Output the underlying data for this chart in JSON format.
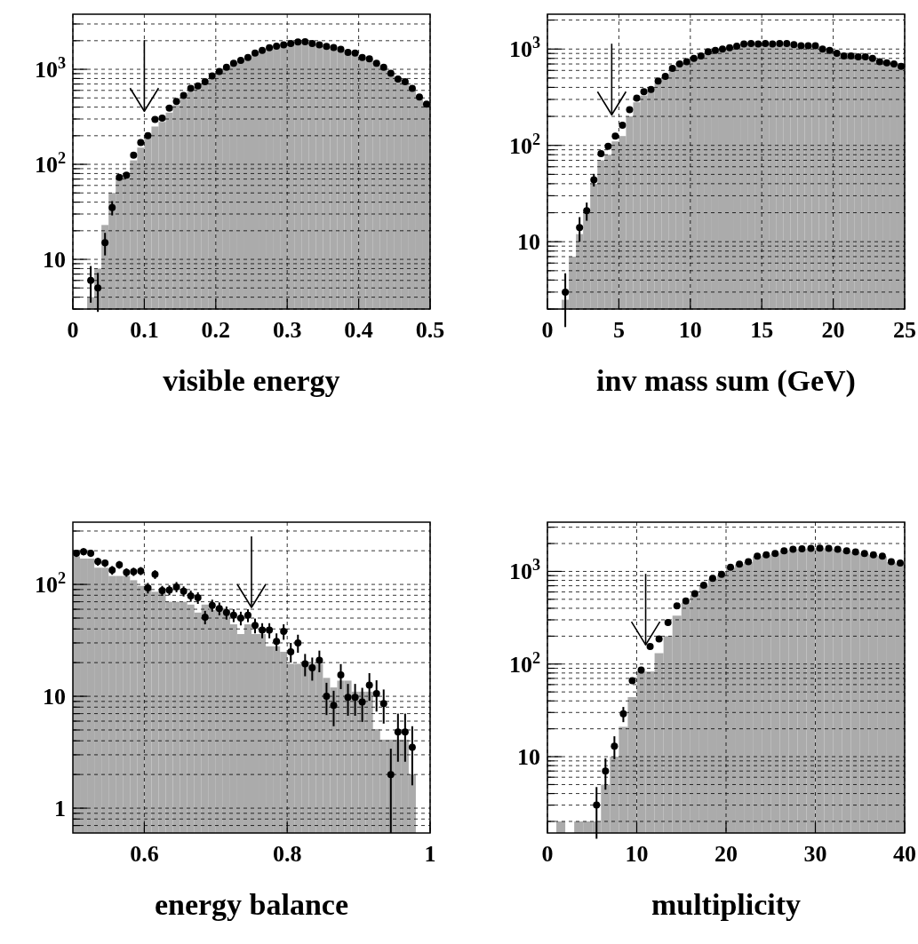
{
  "chart_data": [
    {
      "type": "histogram",
      "xlabel": "visible energy",
      "log": true,
      "grid": true,
      "marker": "circle",
      "xlim": [
        0,
        0.5
      ],
      "ylim": [
        3,
        3800
      ],
      "xticks": [
        0,
        0.1,
        0.2,
        0.3,
        0.4,
        0.5
      ],
      "yticks": [
        {
          "value": 3,
          "label": null
        },
        {
          "value": 4,
          "label": null
        },
        {
          "value": 5,
          "label": null
        },
        {
          "value": 6,
          "label": null
        },
        {
          "value": 7,
          "label": null
        },
        {
          "value": 8,
          "label": null
        },
        {
          "value": 9,
          "label": null
        },
        {
          "value": 10,
          "label": "10"
        },
        {
          "value": 20,
          "label": null
        },
        {
          "value": 30,
          "label": null
        },
        {
          "value": 40,
          "label": null
        },
        {
          "value": 50,
          "label": null
        },
        {
          "value": 60,
          "label": null
        },
        {
          "value": 70,
          "label": null
        },
        {
          "value": 80,
          "label": null
        },
        {
          "value": 90,
          "label": null
        },
        {
          "value": 100,
          "label": "10$^{2}$"
        },
        {
          "value": 200,
          "label": null
        },
        {
          "value": 300,
          "label": null
        },
        {
          "value": 400,
          "label": null
        },
        {
          "value": 500,
          "label": null
        },
        {
          "value": 600,
          "label": null
        },
        {
          "value": 700,
          "label": null
        },
        {
          "value": 800,
          "label": null
        },
        {
          "value": 900,
          "label": null
        },
        {
          "value": 1000,
          "label": "10$^{3}$"
        },
        {
          "value": 2000,
          "label": null
        },
        {
          "value": 3000,
          "label": null
        }
      ],
      "bins": [
        0.02,
        0.03,
        0.04,
        0.05,
        0.06,
        0.07,
        0.08,
        0.09,
        0.1,
        0.11,
        0.12,
        0.13,
        0.14,
        0.15,
        0.16,
        0.17,
        0.18,
        0.19,
        0.2,
        0.21,
        0.22,
        0.23,
        0.24,
        0.25,
        0.26,
        0.27,
        0.28,
        0.29,
        0.3,
        0.31,
        0.32,
        0.33,
        0.34,
        0.35,
        0.36,
        0.37,
        0.38,
        0.39,
        0.4,
        0.41,
        0.42,
        0.43,
        0.44,
        0.45,
        0.46,
        0.47,
        0.48,
        0.49,
        0.5
      ],
      "ref_lines": [
        {
          "axis": "x",
          "value": 0.1
        }
      ],
      "series": [
        {
          "color": "#ababab",
          "values": [
            4,
            8,
            23,
            50,
            70,
            80,
            110,
            150,
            190,
            250,
            280,
            350,
            420,
            490,
            580,
            650,
            720,
            820,
            930,
            1030,
            1130,
            1230,
            1320,
            1460,
            1570,
            1680,
            1740,
            1800,
            1860,
            1920,
            1930,
            1880,
            1820,
            1750,
            1700,
            1620,
            1520,
            1480,
            1340,
            1290,
            1160,
            1050,
            920,
            800,
            740,
            630,
            520,
            440
          ]
        },
        {
          "type": "scatter",
          "color": "#000000",
          "x": [
            0.025,
            0.035,
            0.045,
            0.055,
            0.065,
            0.075,
            0.085,
            0.095,
            0.105,
            0.115,
            0.125,
            0.135,
            0.145,
            0.155,
            0.165,
            0.175,
            0.185,
            0.195,
            0.205,
            0.215,
            0.225,
            0.235,
            0.245,
            0.255,
            0.265,
            0.275,
            0.285,
            0.295,
            0.305,
            0.315,
            0.325,
            0.335,
            0.345,
            0.355,
            0.365,
            0.375,
            0.385,
            0.395,
            0.405,
            0.415,
            0.425,
            0.435,
            0.445,
            0.455,
            0.465,
            0.475,
            0.485,
            0.495
          ],
          "values": [
            6,
            5,
            15,
            35,
            73,
            77,
            125,
            170,
            200,
            296,
            306,
            390,
            460,
            530,
            630,
            670,
            740,
            850,
            950,
            1050,
            1160,
            1240,
            1330,
            1480,
            1580,
            1690,
            1750,
            1810,
            1870,
            1940,
            1950,
            1870,
            1810,
            1740,
            1700,
            1620,
            1510,
            1480,
            1330,
            1290,
            1160,
            1050,
            910,
            790,
            740,
            630,
            510,
            430
          ],
          "errors": [
            2.5,
            2.2,
            4,
            6,
            null,
            null,
            null,
            null,
            null,
            null,
            null,
            null,
            null,
            null,
            null,
            null,
            null,
            null,
            null,
            null,
            null,
            null,
            null,
            null,
            null,
            null,
            null,
            null,
            null,
            null,
            null,
            null,
            null,
            null,
            null,
            null,
            null,
            null,
            null,
            null,
            null,
            null,
            null,
            null,
            null,
            null,
            null,
            null
          ]
        }
      ]
    },
    {
      "type": "histogram",
      "xlabel": "inv mass sum (GeV)",
      "log": true,
      "grid": true,
      "marker": "circle",
      "xlim": [
        0,
        25
      ],
      "ylim": [
        2,
        2300
      ],
      "xticks": [
        0,
        5,
        10,
        15,
        20,
        25
      ],
      "yticks": [
        {
          "value": 2,
          "label": null
        },
        {
          "value": 3,
          "label": null
        },
        {
          "value": 4,
          "label": null
        },
        {
          "value": 5,
          "label": null
        },
        {
          "value": 6,
          "label": null
        },
        {
          "value": 7,
          "label": null
        },
        {
          "value": 8,
          "label": null
        },
        {
          "value": 9,
          "label": null
        },
        {
          "value": 10,
          "label": "10"
        },
        {
          "value": 20,
          "label": null
        },
        {
          "value": 30,
          "label": null
        },
        {
          "value": 40,
          "label": null
        },
        {
          "value": 50,
          "label": null
        },
        {
          "value": 60,
          "label": null
        },
        {
          "value": 70,
          "label": null
        },
        {
          "value": 80,
          "label": null
        },
        {
          "value": 90,
          "label": null
        },
        {
          "value": 100,
          "label": "10$^{2}$"
        },
        {
          "value": 200,
          "label": null
        },
        {
          "value": 300,
          "label": null
        },
        {
          "value": 400,
          "label": null
        },
        {
          "value": 500,
          "label": null
        },
        {
          "value": 600,
          "label": null
        },
        {
          "value": 700,
          "label": null
        },
        {
          "value": 800,
          "label": null
        },
        {
          "value": 900,
          "label": null
        },
        {
          "value": 1000,
          "label": "10$^{3}$"
        },
        {
          "value": 2000,
          "label": null
        }
      ],
      "bins": [
        1,
        1.5,
        2,
        2.5,
        3,
        3.5,
        4,
        4.5,
        5,
        5.5,
        6,
        6.5,
        7,
        7.5,
        8,
        8.5,
        9,
        9.5,
        10,
        10.5,
        11,
        11.5,
        12,
        12.5,
        13,
        13.5,
        14,
        14.5,
        15,
        15.5,
        16,
        16.5,
        17,
        17.5,
        18,
        18.5,
        19,
        19.5,
        20,
        20.5,
        21,
        21.5,
        22,
        22.5,
        23,
        23.5,
        24,
        24.5,
        25
      ],
      "ref_lines": [
        {
          "axis": "x",
          "value": 4.5
        }
      ],
      "series": [
        {
          "color": "#ababab",
          "values": [
            2.5,
            7,
            12,
            20,
            40,
            70,
            80,
            110,
            125,
            200,
            280,
            330,
            370,
            450,
            510,
            620,
            690,
            730,
            790,
            840,
            930,
            960,
            990,
            1020,
            1060,
            1120,
            1130,
            1120,
            1130,
            1120,
            1130,
            1130,
            1100,
            1070,
            1070,
            1070,
            990,
            960,
            900,
            845,
            845,
            825,
            825,
            795,
            735,
            715,
            695,
            655
          ]
        },
        {
          "type": "scatter",
          "color": "#000000",
          "x": [
            1.25,
            1.75,
            2.25,
            2.75,
            3.25,
            3.75,
            4.25,
            4.75,
            5.25,
            5.75,
            6.25,
            6.75,
            7.25,
            7.75,
            8.25,
            8.75,
            9.25,
            9.75,
            10.25,
            10.75,
            11.25,
            11.75,
            12.25,
            12.75,
            13.25,
            13.75,
            14.25,
            14.75,
            15.25,
            15.75,
            16.25,
            16.75,
            17.25,
            17.75,
            18.25,
            18.75,
            19.25,
            19.75,
            20.25,
            20.75,
            21.25,
            21.75,
            22.25,
            22.75,
            23.25,
            23.75,
            24.25,
            24.75
          ],
          "values": [
            3,
            null,
            14,
            21,
            44,
            82,
            98,
            125,
            162,
            235,
            310,
            360,
            380,
            465,
            520,
            630,
            700,
            740,
            800,
            850,
            940,
            970,
            1000,
            1030,
            1070,
            1130,
            1140,
            1130,
            1140,
            1130,
            1140,
            1140,
            1110,
            1080,
            1080,
            1080,
            1000,
            970,
            905,
            850,
            850,
            830,
            830,
            800,
            740,
            720,
            700,
            660
          ],
          "errors": [
            1.7,
            null,
            4,
            4.5,
            6.6,
            null,
            null,
            null,
            null,
            null,
            null,
            null,
            null,
            null,
            null,
            null,
            null,
            null,
            null,
            null,
            null,
            null,
            null,
            null,
            null,
            null,
            null,
            null,
            null,
            null,
            null,
            null,
            null,
            null,
            null,
            null,
            null,
            null,
            null,
            null,
            null,
            null,
            null,
            null,
            null,
            null,
            null,
            null
          ]
        }
      ]
    },
    {
      "type": "histogram",
      "xlabel": "energy balance",
      "log": true,
      "grid": true,
      "marker": "circle",
      "xlim": [
        0.5,
        1
      ],
      "ylim": [
        0.6,
        360
      ],
      "xticks": [
        0.6,
        0.8,
        1
      ],
      "yticks": [
        {
          "value": 0.7,
          "label": null
        },
        {
          "value": 0.8,
          "label": null
        },
        {
          "value": 0.9,
          "label": null
        },
        {
          "value": 1,
          "label": "1"
        },
        {
          "value": 2,
          "label": null
        },
        {
          "value": 3,
          "label": null
        },
        {
          "value": 4,
          "label": null
        },
        {
          "value": 5,
          "label": null
        },
        {
          "value": 6,
          "label": null
        },
        {
          "value": 7,
          "label": null
        },
        {
          "value": 8,
          "label": null
        },
        {
          "value": 9,
          "label": null
        },
        {
          "value": 10,
          "label": "10"
        },
        {
          "value": 20,
          "label": null
        },
        {
          "value": 30,
          "label": null
        },
        {
          "value": 40,
          "label": null
        },
        {
          "value": 50,
          "label": null
        },
        {
          "value": 60,
          "label": null
        },
        {
          "value": 70,
          "label": null
        },
        {
          "value": 80,
          "label": null
        },
        {
          "value": 90,
          "label": null
        },
        {
          "value": 100,
          "label": "10$^{2}$"
        },
        {
          "value": 200,
          "label": null
        },
        {
          "value": 300,
          "label": null
        }
      ],
      "bins": [
        0.5,
        0.51,
        0.52,
        0.53,
        0.54,
        0.55,
        0.56,
        0.57,
        0.58,
        0.59,
        0.6,
        0.61,
        0.62,
        0.63,
        0.64,
        0.65,
        0.66,
        0.67,
        0.68,
        0.69,
        0.7,
        0.71,
        0.72,
        0.73,
        0.74,
        0.75,
        0.76,
        0.77,
        0.78,
        0.79,
        0.8,
        0.81,
        0.82,
        0.83,
        0.84,
        0.85,
        0.86,
        0.87,
        0.88,
        0.89,
        0.9,
        0.91,
        0.92,
        0.93,
        0.94,
        0.95,
        0.96,
        0.97,
        0.98
      ],
      "ref_lines": [
        {
          "axis": "x",
          "value": 0.75
        }
      ],
      "series": [
        {
          "color": "#ababab",
          "values": [
            178,
            170,
            170,
            141,
            141,
            119,
            119,
            119,
            109,
            97,
            97,
            86,
            86,
            70,
            70,
            70,
            66,
            56,
            66,
            59,
            59,
            59,
            44,
            36,
            44,
            36,
            36,
            28,
            28,
            25,
            19.5,
            19.5,
            19.5,
            19.5,
            19.5,
            14.6,
            12,
            13.8,
            13.8,
            11,
            11,
            11,
            5.1,
            4.1,
            4.1,
            4.1,
            4.1,
            2
          ]
        },
        {
          "type": "scatter",
          "color": "#000000",
          "x": [
            0.505,
            0.515,
            0.525,
            0.535,
            0.545,
            0.555,
            0.565,
            0.575,
            0.585,
            0.595,
            0.605,
            0.615,
            0.625,
            0.635,
            0.645,
            0.655,
            0.665,
            0.675,
            0.685,
            0.695,
            0.705,
            0.715,
            0.725,
            0.735,
            0.745,
            0.755,
            0.765,
            0.775,
            0.785,
            0.795,
            0.805,
            0.815,
            0.825,
            0.835,
            0.845,
            0.855,
            0.865,
            0.875,
            0.885,
            0.895,
            0.905,
            0.915,
            0.925,
            0.935,
            0.945,
            0.955,
            0.965,
            0.975
          ],
          "values": [
            190,
            196,
            190,
            160,
            155,
            134,
            150,
            128,
            130,
            132,
            93,
            123,
            88,
            89,
            95,
            87,
            79,
            76,
            51,
            65,
            61,
            56,
            53,
            50,
            53,
            43,
            39,
            39,
            31,
            38,
            25,
            30,
            19.5,
            18,
            21,
            10,
            8.3,
            15.5,
            9.8,
            9.8,
            8.9,
            12.6,
            10.6,
            8.6,
            2,
            4.8,
            4.8,
            3.5
          ],
          "errors": [
            14,
            14,
            14,
            13,
            12,
            12,
            12,
            11,
            11,
            11,
            10,
            11,
            9,
            9,
            10,
            9,
            9,
            9,
            7,
            8,
            8,
            7.5,
            7,
            7,
            7,
            6.5,
            6,
            6,
            5.5,
            6,
            5,
            5.5,
            4.4,
            4.2,
            4.6,
            3.2,
            2.9,
            3.9,
            3.1,
            3.1,
            3,
            3.5,
            3.3,
            2.9,
            1.4,
            2.2,
            2.2,
            1.9
          ]
        }
      ]
    },
    {
      "type": "histogram",
      "xlabel": "multiplicity",
      "log": true,
      "grid": true,
      "marker": "circle",
      "xlim": [
        0,
        40
      ],
      "ylim": [
        1.5,
        3400
      ],
      "xticks": [
        0,
        10,
        20,
        30,
        40
      ],
      "yticks": [
        {
          "value": 2,
          "label": null
        },
        {
          "value": 3,
          "label": null
        },
        {
          "value": 4,
          "label": null
        },
        {
          "value": 5,
          "label": null
        },
        {
          "value": 6,
          "label": null
        },
        {
          "value": 7,
          "label": null
        },
        {
          "value": 8,
          "label": null
        },
        {
          "value": 9,
          "label": null
        },
        {
          "value": 10,
          "label": "10"
        },
        {
          "value": 20,
          "label": null
        },
        {
          "value": 30,
          "label": null
        },
        {
          "value": 40,
          "label": null
        },
        {
          "value": 50,
          "label": null
        },
        {
          "value": 60,
          "label": null
        },
        {
          "value": 70,
          "label": null
        },
        {
          "value": 80,
          "label": null
        },
        {
          "value": 90,
          "label": null
        },
        {
          "value": 100,
          "label": "10$^{2}$"
        },
        {
          "value": 200,
          "label": null
        },
        {
          "value": 300,
          "label": null
        },
        {
          "value": 400,
          "label": null
        },
        {
          "value": 500,
          "label": null
        },
        {
          "value": 600,
          "label": null
        },
        {
          "value": 700,
          "label": null
        },
        {
          "value": 800,
          "label": null
        },
        {
          "value": 900,
          "label": null
        },
        {
          "value": 1000,
          "label": "10$^{3}$"
        },
        {
          "value": 2000,
          "label": null
        },
        {
          "value": 3000,
          "label": null
        }
      ],
      "bins": [
        0,
        1,
        2,
        3,
        4,
        5,
        6,
        7,
        8,
        9,
        10,
        11,
        12,
        13,
        14,
        15,
        16,
        17,
        18,
        19,
        20,
        21,
        22,
        23,
        24,
        25,
        26,
        27,
        28,
        29,
        30,
        31,
        32,
        33,
        34,
        35,
        36,
        37,
        38,
        39,
        40
      ],
      "ref_lines": [
        {
          "axis": "x",
          "value": 11
        }
      ],
      "series": [
        {
          "color": "#ababab",
          "values": [
            null,
            2,
            null,
            2,
            2,
            2,
            5,
            10,
            21,
            44,
            83,
            83,
            131,
            200,
            333,
            460,
            560,
            700,
            830,
            920,
            1100,
            1190,
            1260,
            1450,
            1500,
            1550,
            1660,
            1720,
            1740,
            1760,
            1770,
            1760,
            1720,
            1660,
            1610,
            1550,
            1500,
            1450,
            1260,
            1220
          ]
        },
        {
          "type": "scatter",
          "color": "#000000",
          "x": [
            5.5,
            6.5,
            7.5,
            8.5,
            9.5,
            10.5,
            11.5,
            12.5,
            13.5,
            14.5,
            15.5,
            16.5,
            17.5,
            18.5,
            19.5,
            20.5,
            21.5,
            22.5,
            23.5,
            24.5,
            25.5,
            26.5,
            27.5,
            28.5,
            29.5,
            30.5,
            31.5,
            32.5,
            33.5,
            34.5,
            35.5,
            36.5,
            37.5,
            38.5,
            39.5
          ],
          "values": [
            3,
            7,
            13,
            29,
            66,
            86,
            155,
            187,
            280,
            425,
            480,
            575,
            710,
            840,
            930,
            1110,
            1200,
            1270,
            1460,
            1510,
            1560,
            1670,
            1730,
            1750,
            1770,
            1780,
            1770,
            1730,
            1670,
            1620,
            1560,
            1510,
            1460,
            1270,
            1230
          ],
          "errors": [
            1.7,
            2.6,
            3.6,
            5.4,
            null,
            null,
            null,
            null,
            null,
            null,
            null,
            null,
            null,
            null,
            null,
            null,
            null,
            null,
            null,
            null,
            null,
            null,
            null,
            null,
            null,
            null,
            null,
            null,
            null,
            null,
            null,
            null,
            null,
            null,
            null
          ]
        }
      ]
    }
  ]
}
